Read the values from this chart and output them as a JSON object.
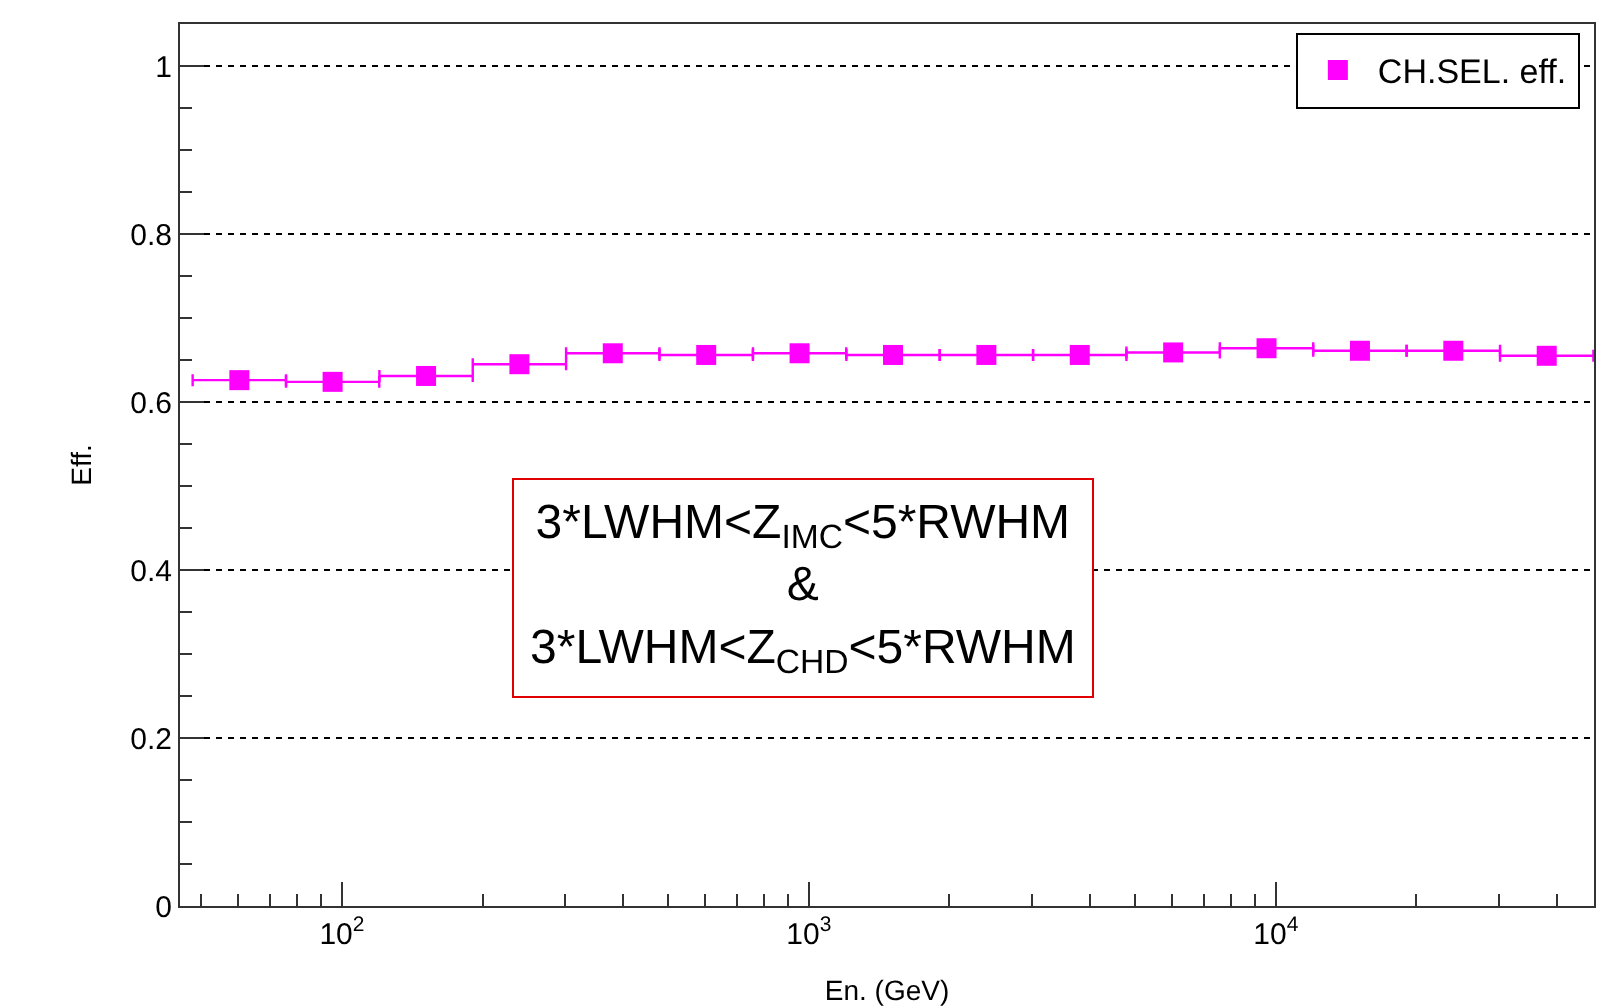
{
  "chart_data": {
    "type": "scatter",
    "xlabel": "En. (GeV)",
    "ylabel": "Eff.",
    "log": "x",
    "xlim": [
      45,
      48000
    ],
    "xticks": [
      {
        "value": 100,
        "label": "10$^{2}$"
      },
      {
        "value": 1000,
        "label": "10$^{3}$"
      },
      {
        "value": 10000,
        "label": "10$^{4}$"
      }
    ],
    "ylim": [
      0,
      1.05
    ],
    "yticks": [
      0,
      0.2,
      0.4,
      0.6,
      0.8,
      1
    ],
    "grid": "y",
    "legend": "top right",
    "marker": "square",
    "x": [
      60.3,
      95.5,
      151.4,
      239.9,
      380.2,
      602.6,
      955,
      1514,
      2399,
      3802,
      6026,
      9550,
      15136,
      23988,
      38019
    ],
    "series": [
      {
        "name": "CH.SEL. eff.",
        "color": "#ff00ff",
        "values": [
          0.626,
          0.624,
          0.631,
          0.645,
          0.658,
          0.656,
          0.658,
          0.656,
          0.656,
          0.656,
          0.659,
          0.664,
          0.661,
          0.661,
          0.655
        ],
        "xerrors": [
          [
            47.9,
            75.9
          ],
          [
            75.9,
            120.2
          ],
          [
            120.3,
            190.6
          ],
          [
            190.6,
            302
          ],
          [
            302,
            478.6
          ],
          [
            478.6,
            758.6
          ],
          [
            759,
            1202
          ],
          [
            1203,
            1906
          ],
          [
            1906,
            3020
          ],
          [
            3020,
            4786
          ],
          [
            4786,
            7586
          ],
          [
            7586,
            12022
          ],
          [
            12023,
            19055
          ],
          [
            19054,
            30199
          ],
          [
            30199,
            47862
          ]
        ]
      }
    ],
    "annotations": [
      "3*LWHM<Z$_{IMC}$<5*RWHM\n&\n3*LWHM<Z$_{CHD}$<5*RWHM"
    ]
  }
}
